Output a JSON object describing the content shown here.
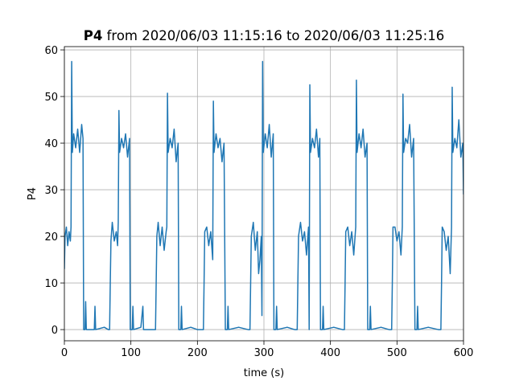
{
  "chart_data": {
    "type": "line",
    "title_name": "P4",
    "title": "from 2020/06/03 11:15:16 to 2020/06/03 11:25:16",
    "xlabel": "time (s)",
    "ylabel": "P4",
    "xlim": [
      0,
      600
    ],
    "xticks": [
      0,
      100,
      200,
      300,
      400,
      500,
      600
    ],
    "ylim": [
      -2.4,
      60.7
    ],
    "yticks": [
      0,
      10,
      20,
      30,
      40,
      50,
      60
    ],
    "grid": true,
    "series": [
      {
        "name": "P4",
        "color": "#1f77b4",
        "x": [
          0,
          1,
          3,
          5,
          7,
          9,
          10,
          11,
          12,
          14,
          17,
          20,
          23,
          26,
          28,
          29,
          31,
          32,
          33,
          45,
          46,
          47,
          60,
          66,
          68,
          69,
          70,
          72,
          75,
          78,
          80,
          81,
          82,
          83,
          86,
          89,
          92,
          95,
          98,
          99,
          102,
          103,
          104,
          115,
          118,
          119,
          134,
          137,
          138,
          139,
          141,
          144,
          147,
          150,
          153,
          154,
          155,
          156,
          159,
          162,
          165,
          168,
          171,
          172,
          175,
          176,
          177,
          190,
          200,
          206,
          209,
          210,
          211,
          214,
          217,
          220,
          223,
          224,
          225,
          228,
          231,
          234,
          237,
          240,
          242,
          245,
          246,
          247,
          262,
          276,
          279,
          280,
          281,
          284,
          287,
          290,
          292,
          294,
          296,
          297,
          298,
          299,
          302,
          305,
          308,
          311,
          314,
          315,
          318,
          319,
          320,
          335,
          346,
          350,
          351,
          352,
          355,
          358,
          361,
          364,
          367,
          368,
          369,
          370,
          373,
          376,
          379,
          382,
          384,
          385,
          388,
          389,
          390,
          405,
          418,
          421,
          422,
          423,
          426,
          429,
          432,
          435,
          438,
          439,
          440,
          443,
          446,
          449,
          452,
          455,
          456,
          459,
          460,
          461,
          476,
          488,
          492,
          493,
          494,
          497,
          500,
          503,
          506,
          508,
          509,
          510,
          513,
          516,
          519,
          522,
          525,
          527,
          530,
          531,
          532,
          547,
          562,
          566,
          567,
          568,
          571,
          574,
          577,
          580,
          582,
          583,
          584,
          587,
          590,
          593,
          596,
          599,
          600
        ],
        "values": [
          13,
          20,
          22,
          18,
          21,
          19,
          22,
          57.5,
          38,
          42,
          39,
          43,
          38,
          44,
          41,
          0,
          0,
          6,
          0,
          0,
          5,
          0,
          0.5,
          0,
          0,
          10,
          19,
          23,
          19,
          21,
          18,
          23,
          47,
          38,
          41,
          39,
          42,
          37,
          41,
          0,
          0,
          5,
          0,
          0.5,
          5,
          0,
          0,
          0,
          10,
          20,
          23,
          18,
          22,
          17,
          21,
          22,
          50.7,
          38,
          41,
          39,
          43,
          36,
          40,
          0,
          0,
          5,
          0,
          0.5,
          0,
          0,
          0,
          10,
          21,
          22,
          18,
          21,
          15,
          49,
          38,
          42,
          39,
          41,
          36,
          40,
          0,
          0,
          5,
          0,
          0.5,
          0,
          0,
          10,
          20,
          23,
          17,
          21,
          12,
          15,
          20,
          3,
          57.5,
          38,
          42,
          39,
          44,
          37,
          42,
          0,
          0,
          5,
          0,
          0.5,
          0,
          0,
          10,
          20,
          23,
          19,
          21,
          16,
          22,
          0,
          52.5,
          38,
          41,
          39,
          43,
          37,
          41,
          0,
          0,
          5,
          0,
          0.5,
          0,
          0,
          10,
          21,
          22,
          18,
          21,
          16,
          22,
          53.5,
          38,
          42,
          39,
          43,
          37,
          40,
          0,
          0,
          5,
          0,
          0.5,
          0,
          0,
          10,
          22,
          22,
          19,
          21,
          16,
          22,
          50.5,
          38,
          41,
          40,
          44,
          37,
          41,
          0,
          0,
          5,
          0,
          0.5,
          0,
          0,
          10,
          22,
          21,
          17,
          20,
          12,
          22,
          52,
          38,
          41,
          39,
          45,
          37,
          40,
          29
        ]
      }
    ]
  }
}
